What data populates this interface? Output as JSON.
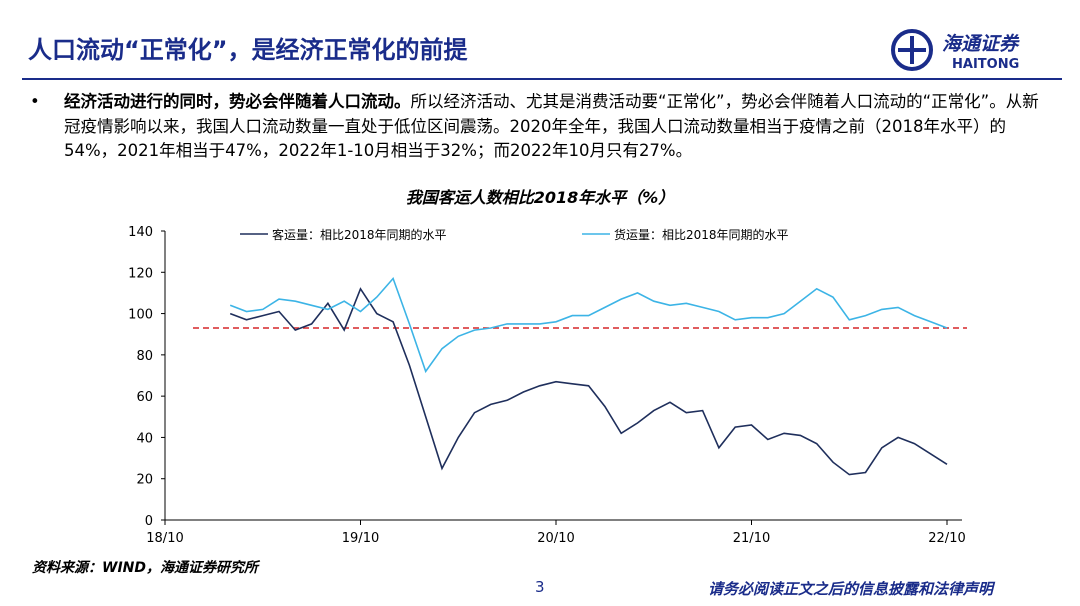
{
  "header": {
    "title": "人口流动“正常化”，是经济正常化的前提",
    "logo_cn": "海通证券",
    "logo_en": "HAITONG"
  },
  "bullet": {
    "bold": "经济活动进行的同时，势必会伴随着人口流动。",
    "text": "所以经济活动、尤其是消费活动要“正常化”，势必会伴随着人口流动的“正常化”。从新冠疫情影响以来，我国人口流动数量一直处于低位区间震荡。2020年全年，我国人口流动数量相当于疫情之前（2018年水平）的54%，2021年相当于47%，2022年1-10月相当于32%；而2022年10月只有27%。"
  },
  "chart_data": {
    "type": "line",
    "title": "我国客运人数相比2018年水平（%）",
    "categories": [
      "18/10",
      null,
      null,
      null,
      null,
      null,
      null,
      null,
      null,
      null,
      null,
      null,
      "19/10",
      null,
      null,
      null,
      null,
      null,
      null,
      null,
      null,
      null,
      null,
      null,
      "20/10",
      null,
      null,
      null,
      null,
      null,
      null,
      null,
      null,
      null,
      null,
      null,
      "21/10",
      null,
      null,
      null,
      null,
      null,
      null,
      null,
      null,
      null,
      null,
      null,
      "22/10"
    ],
    "series": [
      {
        "name": "客运量：相比2018年同期的水平",
        "color": "#1f2f5c",
        "values": [
          null,
          null,
          null,
          null,
          100,
          97,
          99,
          101,
          92,
          95,
          105,
          92,
          112,
          100,
          96,
          75,
          50,
          25,
          40,
          52,
          56,
          58,
          62,
          65,
          67,
          66,
          65,
          55,
          42,
          47,
          53,
          57,
          52,
          53,
          35,
          45,
          46,
          39,
          42,
          41,
          37,
          28,
          22,
          23,
          35,
          40,
          37,
          32,
          27
        ]
      },
      {
        "name": "货运量：相比2018年同期的水平",
        "color": "#3cb4e6",
        "values": [
          null,
          null,
          null,
          null,
          104,
          101,
          102,
          107,
          106,
          104,
          102,
          106,
          101,
          108,
          117,
          95,
          72,
          83,
          89,
          92,
          93,
          95,
          95,
          95,
          96,
          99,
          99,
          103,
          107,
          110,
          106,
          104,
          105,
          103,
          101,
          97,
          98,
          98,
          100,
          106,
          112,
          108,
          97,
          99,
          102,
          103,
          99,
          96,
          93
        ]
      }
    ],
    "reference_line": {
      "value": 93,
      "color": "#d62728"
    },
    "ylim": [
      0,
      140
    ],
    "yticks": [
      0,
      20,
      40,
      60,
      80,
      100,
      120,
      140
    ],
    "source": "资料来源：WIND，海通证券研究所"
  },
  "footer": {
    "page": "3",
    "disclaimer": "请务必阅读正文之后的信息披露和法律声明"
  }
}
